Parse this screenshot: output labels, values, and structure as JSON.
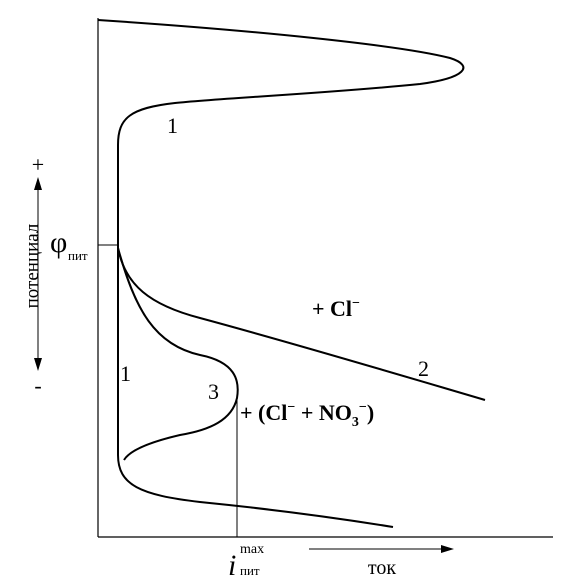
{
  "y_axis": {
    "label": "потенциал",
    "plus": "+",
    "minus": "-",
    "phi_symbol": "φ",
    "phi_subscript": "пит"
  },
  "x_axis": {
    "label": "ток",
    "i_symbol": "i",
    "i_superscript": "max",
    "i_subscript": "пит"
  },
  "curve_labels": {
    "upper_1": "1",
    "lower_1": "1",
    "curve_2": "2",
    "curve_3": "3"
  },
  "annotations": {
    "cl_plus": "+",
    "cl_ion": "Cl",
    "cl_charge": "−",
    "mix_open": "+ (Cl",
    "mix_charge1": "−",
    "mix_mid": " + NO",
    "mix_sub": "3",
    "mix_charge2": "−",
    "mix_close": ")"
  }
}
